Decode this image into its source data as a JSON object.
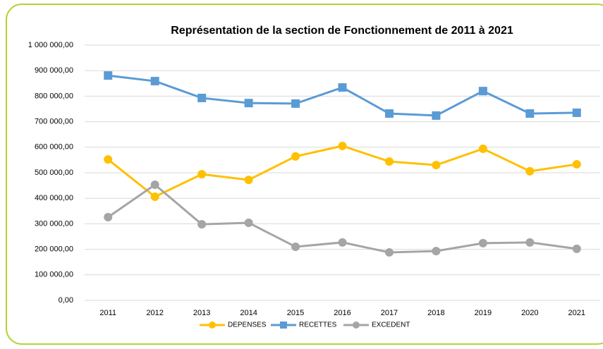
{
  "chart_data": {
    "type": "line",
    "title": "Représentation de la section de Fonctionnement de 2011 à 2021",
    "categories": [
      "2011",
      "2012",
      "2013",
      "2014",
      "2015",
      "2016",
      "2017",
      "2018",
      "2019",
      "2020",
      "2021"
    ],
    "series": [
      {
        "name": "DEPENSES",
        "color": "#ffc000",
        "marker": "circle",
        "values": [
          552000,
          406000,
          494000,
          472000,
          564000,
          605000,
          544000,
          530000,
          594000,
          506000,
          533000
        ]
      },
      {
        "name": "RECETTES",
        "color": "#5b9bd5",
        "marker": "square",
        "values": [
          881000,
          859000,
          793000,
          773000,
          771000,
          834000,
          732000,
          724000,
          820000,
          732000,
          735000
        ]
      },
      {
        "name": "EXCEDENT",
        "color": "#a5a5a5",
        "marker": "circle",
        "values": [
          326000,
          453000,
          298000,
          304000,
          210000,
          227000,
          188000,
          193000,
          224000,
          227000,
          202000
        ]
      }
    ],
    "ylim": [
      0,
      1000000
    ],
    "yticks": [
      {
        "value": 0,
        "label": "0,00"
      },
      {
        "value": 100000,
        "label": "100 000,00"
      },
      {
        "value": 200000,
        "label": "200 000,00"
      },
      {
        "value": 300000,
        "label": "300 000,00"
      },
      {
        "value": 400000,
        "label": "400 000,00"
      },
      {
        "value": 500000,
        "label": "500 000,00"
      },
      {
        "value": 600000,
        "label": "600 000,00"
      },
      {
        "value": 700000,
        "label": "700 000,00"
      },
      {
        "value": 800000,
        "label": "800 000,00"
      },
      {
        "value": 900000,
        "label": "900 000,00"
      },
      {
        "value": 1000000,
        "label": "1 000 000,00"
      }
    ],
    "grid": true,
    "legend": "bottom"
  }
}
